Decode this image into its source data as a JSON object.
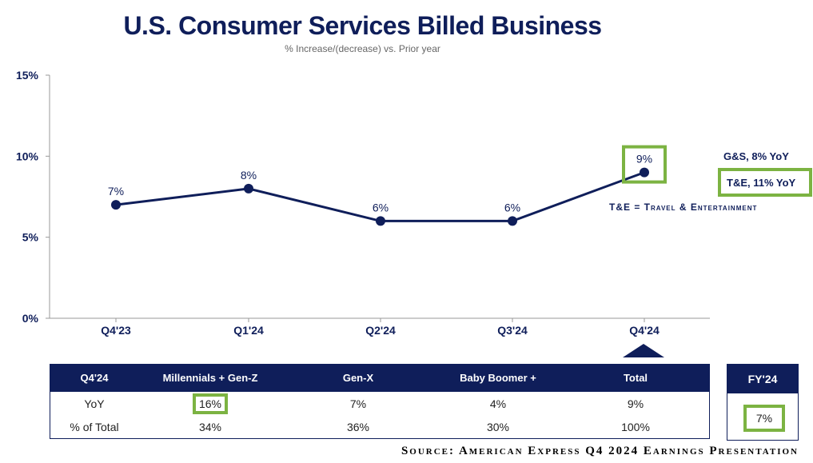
{
  "title": "U.S. Consumer Services Billed Business",
  "subtitle": "% Increase/(decrease) vs. Prior year",
  "chart_data": {
    "type": "line",
    "title": "U.S. Consumer Services Billed Business",
    "subtitle": "% Increase/(decrease) vs. Prior year",
    "categories": [
      "Q4'23",
      "Q1'24",
      "Q2'24",
      "Q3'24",
      "Q4'24"
    ],
    "values": [
      7,
      8,
      6,
      6,
      9
    ],
    "data_labels": [
      "7%",
      "8%",
      "6%",
      "6%",
      "9%"
    ],
    "ylim": [
      0,
      15
    ],
    "yticks": [
      0,
      5,
      10,
      15
    ],
    "ytick_labels": [
      "0%",
      "5%",
      "10%",
      "15%"
    ],
    "xlabel": "",
    "ylabel": "",
    "series_color": "#0f1e5a",
    "highlight_index": 4
  },
  "notes": {
    "gs": "G&S, 8% YoY",
    "te": "T&E, 11% YoY",
    "te_definition": "T&E = Travel & Entertainment"
  },
  "table": {
    "headers": [
      "Q4'24",
      "Millennials + Gen-Z",
      "Gen-X",
      "Baby Boomer +",
      "Total"
    ],
    "rows": [
      [
        "YoY",
        "16%",
        "7%",
        "4%",
        "9%"
      ],
      [
        "% of Total",
        "34%",
        "36%",
        "30%",
        "100%"
      ]
    ]
  },
  "fy": {
    "header": "FY'24",
    "value": "7%"
  },
  "source": "Source: American Express Q4 2024 Earnings Presentation",
  "colors": {
    "navy": "#0f1e5a",
    "green": "#7cb342"
  }
}
